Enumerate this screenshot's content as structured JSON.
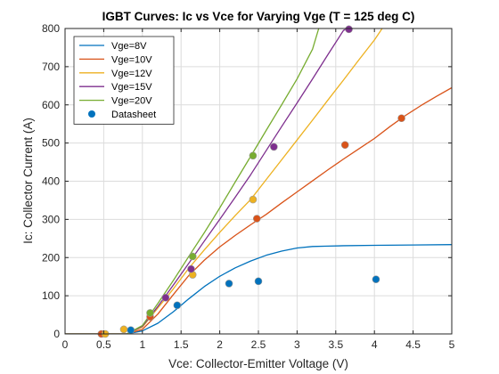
{
  "chart_data": {
    "type": "line",
    "title": "IGBT Curves: Ic vs Vce for Varying Vge  (T = 125 deg C)",
    "xlabel": "Vce: Collector-Emitter Voltage (V)",
    "ylabel": "Ic: Collector Current (A)",
    "xlim": [
      0,
      5
    ],
    "ylim": [
      0,
      800
    ],
    "x_ticks": [
      "0",
      "0.5",
      "1",
      "1.5",
      "2",
      "2.5",
      "3",
      "3.5",
      "4",
      "4.5",
      "5"
    ],
    "y_ticks": [
      "0",
      "100",
      "200",
      "300",
      "400",
      "500",
      "600",
      "700",
      "800"
    ],
    "grid": true,
    "legend_position": "top-left",
    "series": [
      {
        "name": "Vge=8V",
        "color": "#0072BD",
        "x": [
          0,
          0.5,
          0.8,
          1.0,
          1.2,
          1.4,
          1.6,
          1.8,
          2.0,
          2.2,
          2.4,
          2.6,
          2.8,
          3.0,
          3.2,
          3.4,
          3.6,
          4.0,
          4.5,
          5.0
        ],
        "y": [
          0,
          0,
          0,
          8,
          28,
          58,
          92,
          124,
          151,
          173,
          191,
          206,
          217,
          225,
          229,
          230,
          231,
          232,
          233,
          234
        ]
      },
      {
        "name": "Vge=10V",
        "color": "#D95319",
        "x": [
          0,
          0.5,
          0.8,
          1.0,
          1.2,
          1.4,
          1.6,
          1.8,
          2.0,
          2.2,
          2.4,
          2.6,
          2.8,
          3.0,
          3.2,
          3.4,
          3.6,
          3.8,
          4.0,
          4.2,
          4.4,
          4.6,
          4.8,
          5.0
        ],
        "y": [
          0,
          0,
          0,
          12,
          52,
          103,
          153,
          193,
          228,
          258,
          286,
          313,
          343,
          372,
          401,
          430,
          458,
          485,
          512,
          543,
          572,
          598,
          622,
          645
        ]
      },
      {
        "name": "Vge=12V",
        "color": "#EDB120",
        "x": [
          0,
          0.5,
          0.8,
          1.0,
          1.2,
          1.4,
          1.6,
          1.8,
          2.0,
          2.2,
          2.4,
          2.6,
          2.8,
          3.0,
          3.2,
          3.4,
          3.6,
          3.8,
          4.0,
          4.1
        ],
        "y": [
          0,
          0,
          0,
          18,
          68,
          118,
          172,
          220,
          266,
          310,
          352,
          404,
          456,
          508,
          560,
          613,
          665,
          718,
          770,
          800
        ]
      },
      {
        "name": "Vge=15V",
        "color": "#7E2F8E",
        "x": [
          0,
          0.5,
          0.8,
          1.0,
          1.2,
          1.4,
          1.6,
          1.8,
          2.0,
          2.2,
          2.4,
          2.6,
          2.8,
          3.0,
          3.2,
          3.4,
          3.6,
          3.65
        ],
        "y": [
          0,
          0,
          0,
          20,
          72,
          128,
          185,
          243,
          300,
          358,
          417,
          480,
          543,
          605,
          668,
          732,
          795,
          800
        ]
      },
      {
        "name": "Vge=20V",
        "color": "#77AC30",
        "x": [
          0,
          0.5,
          0.8,
          1.0,
          1.2,
          1.4,
          1.6,
          1.8,
          2.0,
          2.2,
          2.4,
          2.6,
          2.8,
          3.0,
          3.2,
          3.28
        ],
        "y": [
          0,
          0,
          0,
          22,
          80,
          140,
          203,
          265,
          330,
          398,
          465,
          533,
          600,
          668,
          746,
          800
        ]
      }
    ],
    "datasheet": {
      "name": "Datasheet",
      "color": "#0072BD",
      "points": [
        {
          "x": 0.85,
          "y": 10,
          "color": "#0072BD"
        },
        {
          "x": 1.45,
          "y": 75,
          "color": "#0072BD"
        },
        {
          "x": 2.12,
          "y": 132,
          "color": "#0072BD"
        },
        {
          "x": 2.5,
          "y": 138,
          "color": "#0072BD"
        },
        {
          "x": 4.02,
          "y": 143,
          "color": "#0072BD"
        },
        {
          "x": 0.47,
          "y": 0,
          "color": "#D95319"
        },
        {
          "x": 1.1,
          "y": 45,
          "color": "#D95319"
        },
        {
          "x": 2.48,
          "y": 302,
          "color": "#D95319"
        },
        {
          "x": 3.62,
          "y": 495,
          "color": "#D95319"
        },
        {
          "x": 4.35,
          "y": 565,
          "color": "#D95319"
        },
        {
          "x": 0.52,
          "y": 0,
          "color": "#EDB120"
        },
        {
          "x": 0.76,
          "y": 12,
          "color": "#EDB120"
        },
        {
          "x": 1.65,
          "y": 155,
          "color": "#EDB120"
        },
        {
          "x": 2.43,
          "y": 352,
          "color": "#EDB120"
        },
        {
          "x": 1.3,
          "y": 95,
          "color": "#7E2F8E"
        },
        {
          "x": 1.63,
          "y": 170,
          "color": "#7E2F8E"
        },
        {
          "x": 2.7,
          "y": 490,
          "color": "#7E2F8E"
        },
        {
          "x": 3.67,
          "y": 798,
          "color": "#7E2F8E"
        },
        {
          "x": 1.1,
          "y": 55,
          "color": "#77AC30"
        },
        {
          "x": 1.65,
          "y": 203,
          "color": "#77AC30"
        },
        {
          "x": 2.43,
          "y": 467,
          "color": "#77AC30"
        }
      ]
    }
  }
}
